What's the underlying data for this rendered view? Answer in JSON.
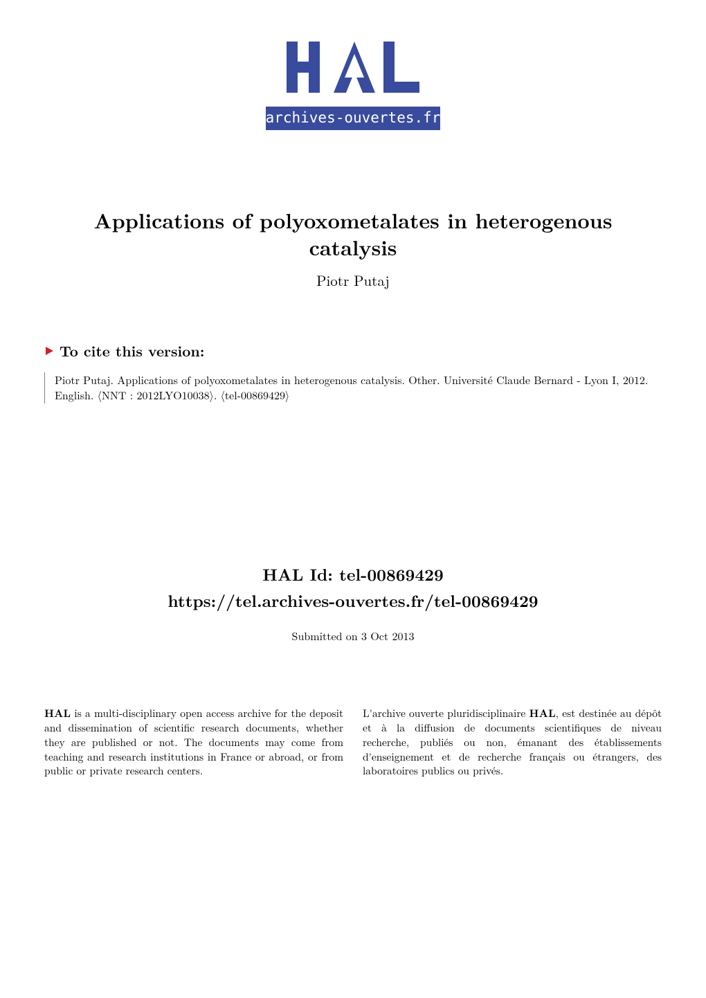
{
  "logo": {
    "top_text": "HAL",
    "bottom_text": "archives-ouvertes.fr",
    "band_color": "#394b9d",
    "text_color": "#394b9d"
  },
  "title_block": {
    "title_line1": "Applications of polyoxometalates in heterogenous",
    "title_line2": "catalysis",
    "author": "Piotr Putaj"
  },
  "cite": {
    "heading": "To cite this version:",
    "triangle_color": "#d0202a",
    "text": "Piotr Putaj. Applications of polyoxometalates in heterogenous catalysis. Other. Université Claude Bernard - Lyon I, 2012. English. 〈NNT : 2012LYO10038〉. 〈tel-00869429〉"
  },
  "hal_id": {
    "id_label": "HAL Id: tel-00869429",
    "url": "https://tel.archives-ouvertes.fr/tel-00869429",
    "submitted": "Submitted on 3 Oct 2013"
  },
  "descriptions": {
    "left": "HAL is a multi-disciplinary open access archive for the deposit and dissemination of scientific research documents, whether they are published or not. The documents may come from teaching and research institutions in France or abroad, or from public or private research centers.",
    "right": "L'archive ouverte pluridisciplinaire HAL, est destinée au dépôt et à la diffusion de documents scientifiques de niveau recherche, publiés ou non, émanant des établissements d'enseignement et de recherche français ou étrangers, des laboratoires publics ou privés.",
    "bold_token_left": "HAL",
    "bold_token_right": "HAL"
  }
}
